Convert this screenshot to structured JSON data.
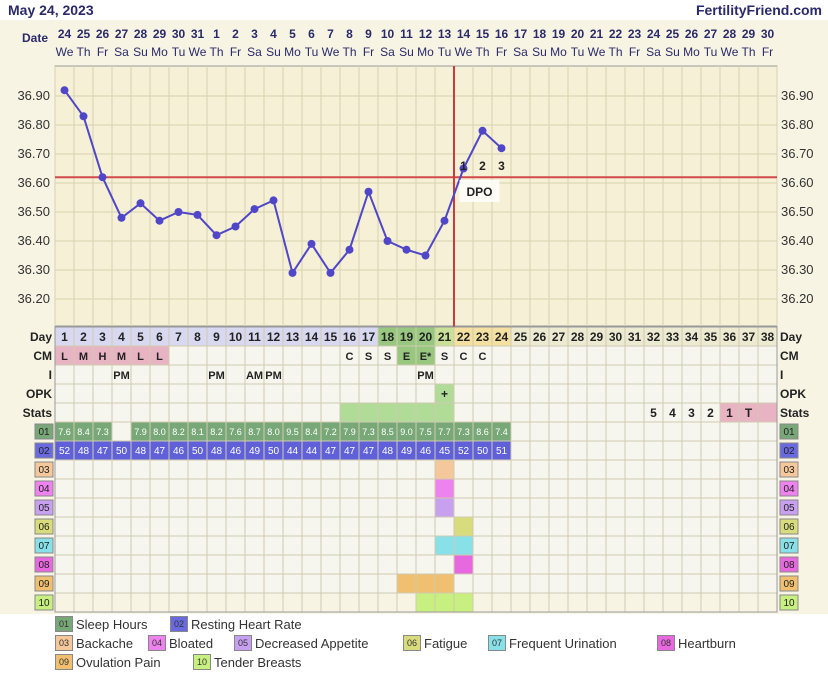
{
  "header": {
    "date": "May 24, 2023",
    "site": "FertilityFriend.com"
  },
  "colors": {
    "plot_bg": "#f5f0d6",
    "bg": "#f7f4e3",
    "grid": "#d8d2b0",
    "line": "#5046c8",
    "coverline": "#d24b4b",
    "ovulation": "#c83c3c",
    "green": "#78a878",
    "blue": "#6060d8",
    "pink": "#e8b4c4",
    "light_green": "#b0dc98",
    "ovulation_highlight": "#98c880"
  },
  "chart_data": {
    "type": "line",
    "x_label_row": "Date",
    "y_ticks": [
      "36.90",
      "36.80",
      "36.70",
      "36.60",
      "36.50",
      "36.40",
      "36.30",
      "36.20"
    ],
    "ylim": [
      36.15,
      37.0
    ],
    "dates": [
      "24",
      "25",
      "26",
      "27",
      "28",
      "29",
      "30",
      "31",
      "1",
      "2",
      "3",
      "4",
      "5",
      "6",
      "7",
      "8",
      "9",
      "10",
      "11",
      "12",
      "13",
      "14",
      "15",
      "16",
      "17",
      "18",
      "19",
      "20",
      "21",
      "22",
      "23",
      "24",
      "25",
      "26",
      "27",
      "28",
      "29",
      "30"
    ],
    "weekdays": [
      "We",
      "Th",
      "Fr",
      "Sa",
      "Su",
      "Mo",
      "Tu",
      "We",
      "Th",
      "Fr",
      "Sa",
      "Su",
      "Mo",
      "Tu",
      "We",
      "Th",
      "Fr",
      "Sa",
      "Su",
      "Mo",
      "Tu",
      "We",
      "Th",
      "Fr",
      "Sa",
      "Su",
      "Mo",
      "Tu",
      "We",
      "Th",
      "Fr",
      "Sa",
      "Su",
      "Mo",
      "Tu",
      "We",
      "Th",
      "Fr"
    ],
    "days": [
      1,
      2,
      3,
      4,
      5,
      6,
      7,
      8,
      9,
      10,
      11,
      12,
      13,
      14,
      15,
      16,
      17,
      18,
      19,
      20,
      21,
      22,
      23,
      24,
      25,
      26,
      27,
      28,
      29,
      30,
      31,
      32,
      33,
      34,
      35,
      36,
      37,
      38
    ],
    "temperatures": [
      36.92,
      36.83,
      36.62,
      36.48,
      36.53,
      36.47,
      36.5,
      36.49,
      36.42,
      36.45,
      36.51,
      36.54,
      36.29,
      36.39,
      36.29,
      36.37,
      36.57,
      36.4,
      36.37,
      36.35,
      36.47,
      36.65,
      36.78,
      36.72
    ],
    "coverline": 36.62,
    "ovulation_day": 21,
    "dpo": {
      "label": "DPO",
      "numbers": [
        "1",
        "2",
        "3"
      ],
      "start_day": 22
    },
    "row_labels": {
      "day": "Day",
      "cm": "CM",
      "intercourse": "I",
      "opk": "OPK",
      "stats": "Stats"
    },
    "cm": [
      {
        "day": 1,
        "v": "L"
      },
      {
        "day": 2,
        "v": "M"
      },
      {
        "day": 3,
        "v": "H"
      },
      {
        "day": 4,
        "v": "M"
      },
      {
        "day": 5,
        "v": "L"
      },
      {
        "day": 6,
        "v": "L"
      },
      {
        "day": 16,
        "v": "C"
      },
      {
        "day": 17,
        "v": "S"
      },
      {
        "day": 18,
        "v": "S"
      },
      {
        "day": 19,
        "v": "E"
      },
      {
        "day": 20,
        "v": "E*"
      },
      {
        "day": 21,
        "v": "S"
      },
      {
        "day": 22,
        "v": "C"
      },
      {
        "day": 23,
        "v": "C"
      }
    ],
    "intercourse": [
      {
        "day": 4,
        "v": "PM"
      },
      {
        "day": 9,
        "v": "PM"
      },
      {
        "day": 11,
        "v": "AM"
      },
      {
        "day": 12,
        "v": "PM"
      },
      {
        "day": 20,
        "v": "PM"
      }
    ],
    "opk": [
      {
        "day": 21,
        "v": "+"
      }
    ],
    "stats": [
      {
        "day": 32,
        "v": "5"
      },
      {
        "day": 33,
        "v": "4"
      },
      {
        "day": 34,
        "v": "3"
      },
      {
        "day": 35,
        "v": "2"
      },
      {
        "day": 36,
        "v": "1"
      },
      {
        "day": 37,
        "v": "T"
      }
    ],
    "sleep_hours": [
      "7.6",
      "8.4",
      "7.3",
      "",
      "7.9",
      "8.0",
      "8.2",
      "8.1",
      "8.2",
      "7.6",
      "8.7",
      "8.0",
      "9.5",
      "8.4",
      "7.2",
      "7.9",
      "7.3",
      "8.5",
      "9.0",
      "7.5",
      "7.7",
      "7.3",
      "8.6",
      "7.4"
    ],
    "resting_hr": [
      "52",
      "48",
      "47",
      "50",
      "48",
      "47",
      "46",
      "50",
      "48",
      "46",
      "49",
      "50",
      "44",
      "44",
      "47",
      "47",
      "47",
      "48",
      "49",
      "46",
      "45",
      "52",
      "50",
      "51"
    ],
    "symptom_codes": [
      "01",
      "02",
      "03",
      "04",
      "05",
      "06",
      "07",
      "08",
      "09",
      "10"
    ],
    "symptoms": [
      {
        "code": "03",
        "days": [
          21
        ]
      },
      {
        "code": "04",
        "days": [
          21
        ]
      },
      {
        "code": "05",
        "days": [
          21
        ]
      },
      {
        "code": "06",
        "days": [
          22
        ]
      },
      {
        "code": "07",
        "days": [
          21,
          22
        ]
      },
      {
        "code": "08",
        "days": [
          22
        ]
      },
      {
        "code": "09",
        "days": [
          19,
          20,
          21
        ]
      },
      {
        "code": "10",
        "days": [
          20,
          21,
          22
        ]
      }
    ],
    "symptom_colors": {
      "01": "#78a878",
      "02": "#6a6ae0",
      "03": "#f5c89c",
      "04": "#ee82ee",
      "05": "#c8a0f0",
      "06": "#d8dc7c",
      "07": "#88e0e8",
      "08": "#e868e0",
      "09": "#f0c070",
      "10": "#c8f080"
    }
  },
  "legend": [
    {
      "code": "01",
      "label": "Sleep Hours"
    },
    {
      "code": "02",
      "label": "Resting Heart Rate"
    },
    {
      "code": "03",
      "label": "Backache"
    },
    {
      "code": "04",
      "label": "Bloated"
    },
    {
      "code": "05",
      "label": "Decreased Appetite"
    },
    {
      "code": "06",
      "label": "Fatigue"
    },
    {
      "code": "07",
      "label": "Frequent Urination"
    },
    {
      "code": "08",
      "label": "Heartburn"
    },
    {
      "code": "09",
      "label": "Ovulation Pain"
    },
    {
      "code": "10",
      "label": "Tender Breasts"
    }
  ]
}
